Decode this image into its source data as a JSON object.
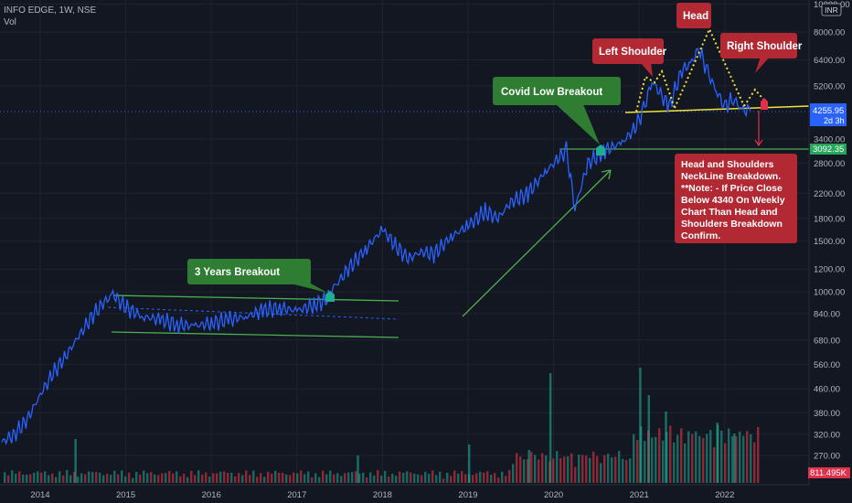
{
  "header": {
    "symbol_line": "INFO EDGE, 1W, NSE",
    "vol_label": "Vol"
  },
  "currency_badge": "INR",
  "price_tags": {
    "last": {
      "value": "4255.95",
      "timer": "2d 3h",
      "color": "#2962ff"
    },
    "level": {
      "value": "3092.35",
      "color": "#26a65b"
    },
    "volume": {
      "value": "811.495K",
      "color": "#e0314b"
    }
  },
  "annotations": {
    "three_years": "3 Years Breakout",
    "covid": "Covid Low Breakout",
    "left_shoulder": "Left Shoulder",
    "head": "Head",
    "right_shoulder": "Right Shoulder",
    "note_lines": [
      "Head and Shoulders",
      "NeckLine Breakdown.",
      "**Note: - If Price Close",
      "Below 4340 On Weekly",
      "Chart Than Head and",
      "Shoulders Breakdown",
      "Confirm."
    ]
  },
  "colors": {
    "price_line": "#2962ff",
    "green_box": "#2e7d32",
    "red_box": "#b22833",
    "trend": "#4caf50",
    "neckline": "#f3e13c"
  },
  "chart_data": {
    "type": "line",
    "title": "",
    "xlabel": "",
    "ylabel": "",
    "log_scale": true,
    "ylim": [
      240,
      11000
    ],
    "x_ticks": [
      "2014",
      "2015",
      "2016",
      "2017",
      "2018",
      "2019",
      "2020",
      "2021",
      "2022"
    ],
    "y_ticks": [
      "10000.00",
      "8000.00",
      "6400.00",
      "5200.00",
      "4255.95",
      "3400.00",
      "2800.00",
      "2200.00",
      "1800.00",
      "1500.00",
      "1200.00",
      "1000.00",
      "840.00",
      "680.00",
      "560.00",
      "460.00",
      "380.00",
      "320.00",
      "270.00"
    ],
    "price": {
      "x": [
        2013.55,
        2013.7,
        2013.85,
        2014.0,
        2014.15,
        2014.3,
        2014.45,
        2014.6,
        2014.75,
        2014.85,
        2015.0,
        2015.2,
        2015.4,
        2015.6,
        2015.8,
        2016.0,
        2016.2,
        2016.4,
        2016.6,
        2016.8,
        2017.0,
        2017.2,
        2017.35,
        2017.45,
        2017.6,
        2017.8,
        2018.0,
        2018.15,
        2018.3,
        2018.45,
        2018.6,
        2018.8,
        2019.0,
        2019.2,
        2019.35,
        2019.5,
        2019.7,
        2019.9,
        2020.05,
        2020.15,
        2020.25,
        2020.4,
        2020.6,
        2020.8,
        2020.95,
        2021.05,
        2021.15,
        2021.35,
        2021.5,
        2021.6,
        2021.7,
        2021.8,
        2021.9,
        2022.0,
        2022.1,
        2022.2,
        2022.3
      ],
      "y": [
        300,
        320,
        360,
        440,
        520,
        600,
        700,
        820,
        920,
        980,
        880,
        820,
        800,
        770,
        760,
        780,
        800,
        820,
        860,
        880,
        860,
        900,
        940,
        1050,
        1200,
        1400,
        1650,
        1450,
        1300,
        1380,
        1350,
        1550,
        1700,
        1900,
        1800,
        2050,
        2200,
        2600,
        2900,
        3100,
        1950,
        2800,
        3100,
        3300,
        3700,
        4300,
        5400,
        4400,
        5900,
        6200,
        7000,
        5800,
        5000,
        4400,
        4700,
        4300,
        4255.95
      ]
    },
    "volume_spikes": [
      {
        "x": 2014.4,
        "v": 0.8
      },
      {
        "x": 2017.7,
        "v": 0.5
      },
      {
        "x": 2019.0,
        "v": 0.7
      },
      {
        "x": 2019.7,
        "v": 0.6
      },
      {
        "x": 2019.95,
        "v": 2.0
      },
      {
        "x": 2021.0,
        "v": 2.1
      },
      {
        "x": 2021.1,
        "v": 1.6
      },
      {
        "x": 2021.3,
        "v": 1.3
      },
      {
        "x": 2021.9,
        "v": 1.1
      },
      {
        "x": 2022.1,
        "v": 0.9
      }
    ],
    "levels": {
      "neckline": 4340,
      "breakout_2020": 3092.35
    }
  }
}
